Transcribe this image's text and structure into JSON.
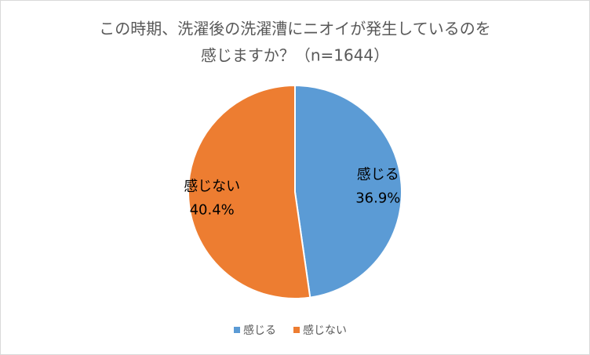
{
  "chart_data": {
    "type": "pie",
    "title": [
      "この時期、洗濯後の洗濯漕にニオイが発生しているのを",
      "感じますか？（n=1644）"
    ],
    "categories": [
      "感じる",
      "感じない"
    ],
    "values": [
      36.9,
      40.4
    ],
    "value_labels": [
      "36.9%",
      "40.4%"
    ],
    "colors": [
      "#5b9bd5",
      "#ed7d31"
    ],
    "legend": "bottom"
  }
}
